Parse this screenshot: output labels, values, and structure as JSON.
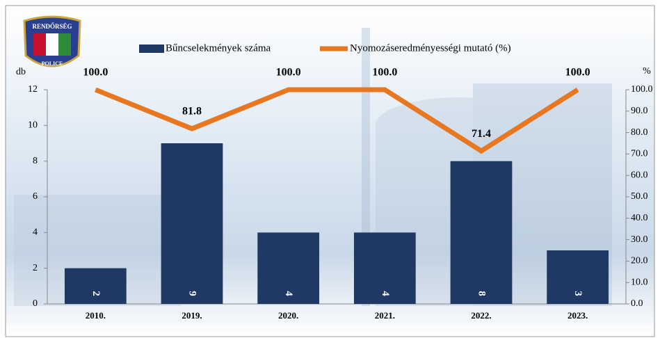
{
  "logo": {
    "top": "RENDŐRSÉG",
    "bottom": "POLICE"
  },
  "chart_data": {
    "type": "bar_line",
    "categories": [
      "2010.",
      "2019.",
      "2020.",
      "2021.",
      "2022.",
      "2023."
    ],
    "series": [
      {
        "name": "Bűncselekmények száma",
        "color": "#1f3864",
        "type": "bar",
        "values": [
          2,
          9,
          4,
          4,
          8,
          3
        ]
      },
      {
        "name": "Nyomozáseredményességi mutató (%)",
        "color": "#e87722",
        "type": "line",
        "axis": "y2",
        "values": [
          100,
          81.8,
          100,
          100,
          71.4,
          100
        ],
        "value_labels": [
          "100.0",
          "81.8",
          "100.0",
          "100.0",
          "71.4",
          "100.0"
        ]
      }
    ],
    "ylabel": "db",
    "y2label": "%",
    "ylim": [
      0,
      12
    ],
    "yticks": [
      0,
      2,
      4,
      6,
      8,
      10,
      12
    ],
    "y2lim": [
      0,
      100
    ],
    "y2ticks": [
      {
        "value": 0,
        "label": "0.0"
      },
      {
        "value": 10,
        "label": "10.0"
      },
      {
        "value": 20,
        "label": "20.0"
      },
      {
        "value": 30,
        "label": "30.0"
      },
      {
        "value": 40,
        "label": "40.0"
      },
      {
        "value": 50,
        "label": "50.0"
      },
      {
        "value": 60,
        "label": "60.0"
      },
      {
        "value": 70,
        "label": "70.0"
      },
      {
        "value": 80,
        "label": "80.0"
      },
      {
        "value": 90,
        "label": "90.0"
      },
      {
        "value": 100,
        "label": "100.0"
      }
    ],
    "legend": "top"
  }
}
